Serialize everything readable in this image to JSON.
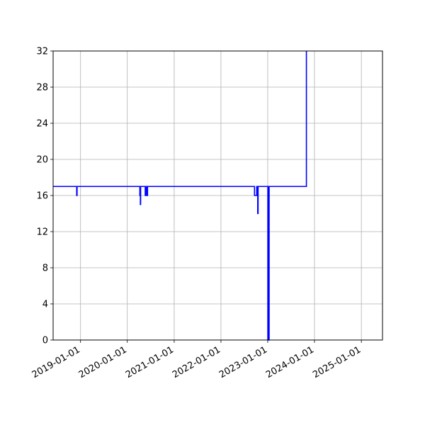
{
  "chart_data": {
    "type": "line",
    "title": "",
    "xlabel": "",
    "ylabel": "",
    "x_axis": {
      "type": "date",
      "min": "2018-06-01",
      "max": "2025-06-15",
      "ticks": [
        "2019-01-01",
        "2020-01-01",
        "2021-01-01",
        "2022-01-01",
        "2023-01-01",
        "2024-01-01",
        "2025-01-01"
      ],
      "tick_labels": [
        "2019-01-01",
        "2020-01-01",
        "2021-01-01",
        "2022-01-01",
        "2023-01-01",
        "2024-01-01",
        "2025-01-01"
      ]
    },
    "y_axis": {
      "min": 0,
      "max": 32,
      "ticks": [
        0,
        4,
        8,
        12,
        16,
        20,
        24,
        28,
        32
      ],
      "tick_labels": [
        "0",
        "4",
        "8",
        "12",
        "16",
        "20",
        "24",
        "28",
        "32"
      ]
    },
    "grid": true,
    "series_color": "#0000ff",
    "series": [
      {
        "x": [
          "2018-06-01",
          "2018-12-02",
          "2018-12-02",
          "2018-12-05",
          "2018-12-05",
          "2020-04-08",
          "2020-04-08",
          "2020-04-12",
          "2020-04-12",
          "2020-04-14",
          "2020-04-14",
          "2020-04-18",
          "2020-04-18",
          "2020-05-20",
          "2020-05-20",
          "2020-05-24",
          "2020-05-24",
          "2020-06-02",
          "2020-06-02",
          "2020-06-07",
          "2020-06-07",
          "2022-09-20",
          "2022-09-20",
          "2022-10-07",
          "2022-10-07",
          "2022-10-10",
          "2022-10-10",
          "2022-10-12",
          "2022-10-12",
          "2022-10-15",
          "2022-10-15",
          "2022-10-18",
          "2022-10-18",
          "2022-10-20",
          "2022-10-20",
          "2023-01-02",
          "2023-01-02",
          "2023-01-04",
          "2023-01-04",
          "2023-01-08",
          "2023-01-08",
          "2023-01-12",
          "2023-01-12",
          "2023-10-30",
          "2023-10-30"
        ],
        "y": [
          17,
          17,
          16,
          16,
          17,
          17,
          16,
          16,
          15,
          15,
          17,
          17,
          17,
          17,
          16,
          16,
          17,
          17,
          16,
          16,
          17,
          17,
          16,
          16,
          17,
          17,
          16,
          16,
          17,
          17,
          14,
          14,
          17,
          17,
          17,
          17,
          0,
          0,
          17,
          17,
          0,
          0,
          17,
          17,
          32
        ]
      }
    ]
  }
}
